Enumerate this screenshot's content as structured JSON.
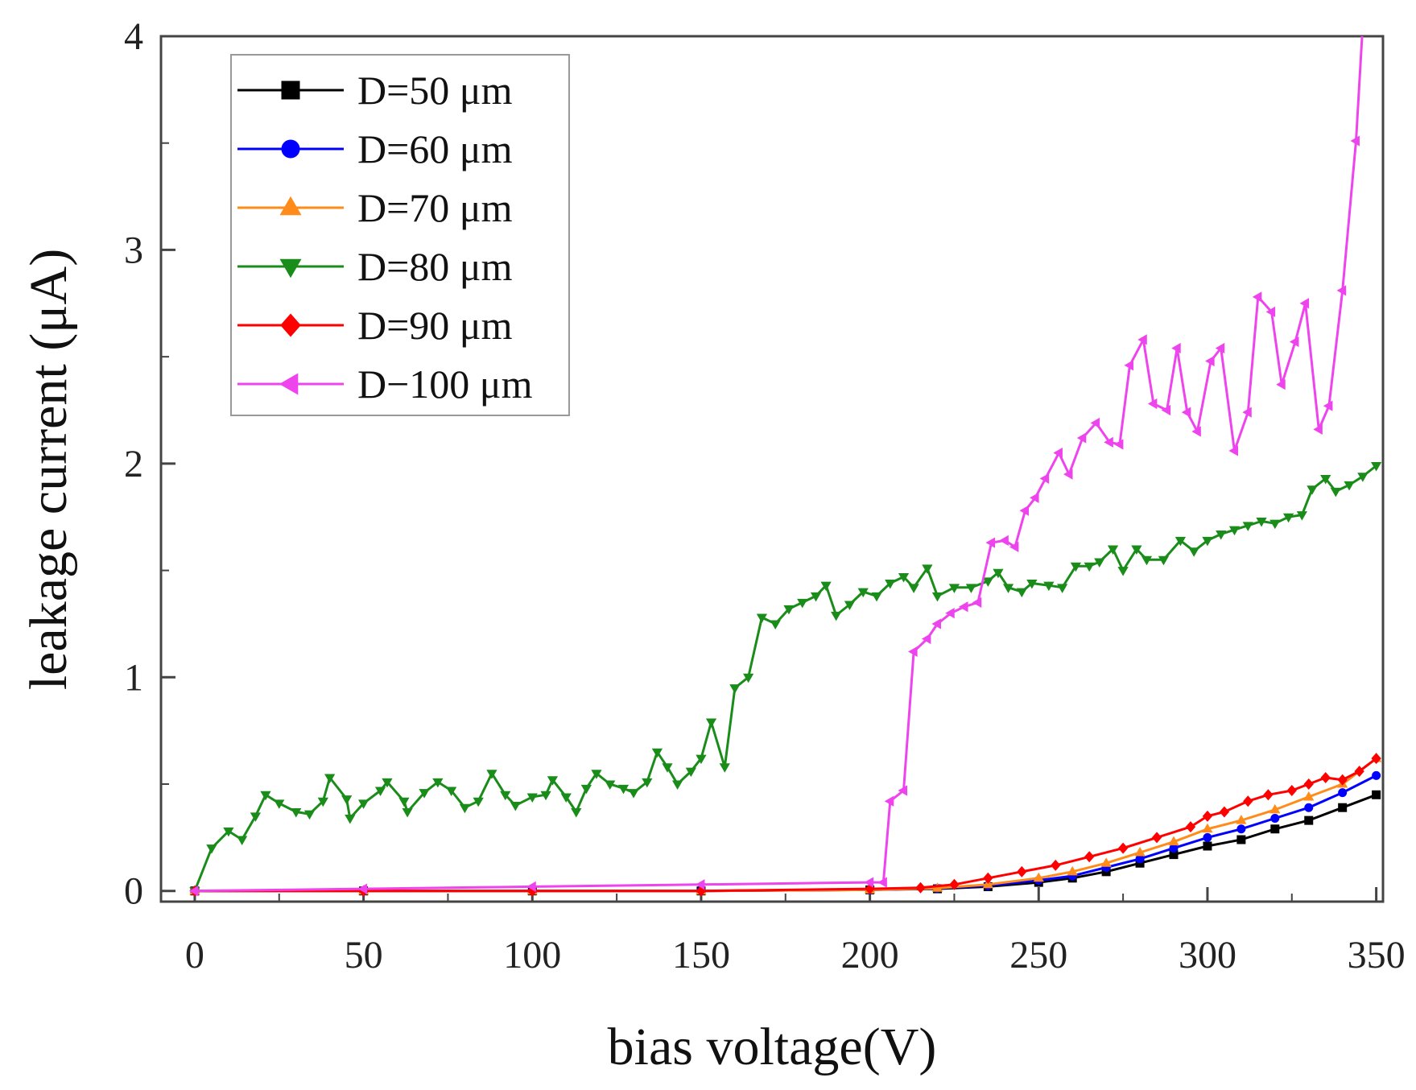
{
  "chart_data": {
    "type": "line",
    "title": "",
    "xlabel": "bias voltage(V)",
    "ylabel": "leakage current (μA)",
    "xlim": [
      -10,
      352
    ],
    "ylim": [
      -0.05,
      4.0
    ],
    "xticks": [
      0,
      50,
      100,
      150,
      200,
      250,
      300,
      350
    ],
    "yticks": [
      0,
      1,
      2,
      3,
      4
    ],
    "grid": false,
    "legend_position": "top-left",
    "series": [
      {
        "name": "D=50 μm",
        "color": "#000000",
        "marker": "square",
        "points": [
          [
            0,
            0
          ],
          [
            50,
            0
          ],
          [
            100,
            0
          ],
          [
            150,
            0
          ],
          [
            200,
            0.005
          ],
          [
            220,
            0.01
          ],
          [
            235,
            0.02
          ],
          [
            250,
            0.04
          ],
          [
            260,
            0.06
          ],
          [
            270,
            0.09
          ],
          [
            280,
            0.13
          ],
          [
            290,
            0.17
          ],
          [
            300,
            0.21
          ],
          [
            310,
            0.24
          ],
          [
            320,
            0.29
          ],
          [
            330,
            0.33
          ],
          [
            340,
            0.39
          ],
          [
            350,
            0.45
          ]
        ]
      },
      {
        "name": "D=60 μm",
        "color": "#0000ff",
        "marker": "circle",
        "points": [
          [
            0,
            0
          ],
          [
            50,
            0
          ],
          [
            100,
            0
          ],
          [
            150,
            0
          ],
          [
            200,
            0.005
          ],
          [
            220,
            0.012
          ],
          [
            235,
            0.025
          ],
          [
            250,
            0.05
          ],
          [
            260,
            0.07
          ],
          [
            270,
            0.11
          ],
          [
            280,
            0.15
          ],
          [
            290,
            0.2
          ],
          [
            300,
            0.25
          ],
          [
            310,
            0.29
          ],
          [
            320,
            0.34
          ],
          [
            330,
            0.39
          ],
          [
            340,
            0.46
          ],
          [
            350,
            0.54
          ]
        ]
      },
      {
        "name": "D=70 μm",
        "color": "#ff8c1a",
        "marker": "triangle-up",
        "points": [
          [
            0,
            0
          ],
          [
            50,
            0
          ],
          [
            100,
            0
          ],
          [
            150,
            0
          ],
          [
            200,
            0.005
          ],
          [
            220,
            0.013
          ],
          [
            235,
            0.03
          ],
          [
            250,
            0.06
          ],
          [
            260,
            0.09
          ],
          [
            270,
            0.13
          ],
          [
            280,
            0.18
          ],
          [
            290,
            0.23
          ],
          [
            300,
            0.29
          ],
          [
            310,
            0.33
          ],
          [
            320,
            0.38
          ],
          [
            330,
            0.44
          ],
          [
            340,
            0.5
          ],
          [
            350,
            0.62
          ]
        ]
      },
      {
        "name": "D=80 μm",
        "color": "#1a8c1a",
        "marker": "triangle-down",
        "points": [
          [
            0,
            0
          ],
          [
            5,
            0.2
          ],
          [
            10,
            0.28
          ],
          [
            14,
            0.24
          ],
          [
            18,
            0.35
          ],
          [
            21,
            0.45
          ],
          [
            25,
            0.41
          ],
          [
            30,
            0.37
          ],
          [
            34,
            0.36
          ],
          [
            38,
            0.42
          ],
          [
            40,
            0.53
          ],
          [
            45,
            0.43
          ],
          [
            46,
            0.34
          ],
          [
            50,
            0.41
          ],
          [
            55,
            0.47
          ],
          [
            57,
            0.51
          ],
          [
            62,
            0.42
          ],
          [
            63,
            0.37
          ],
          [
            68,
            0.46
          ],
          [
            72,
            0.51
          ],
          [
            76,
            0.47
          ],
          [
            80,
            0.39
          ],
          [
            84,
            0.42
          ],
          [
            88,
            0.55
          ],
          [
            92,
            0.45
          ],
          [
            95,
            0.4
          ],
          [
            100,
            0.44
          ],
          [
            104,
            0.45
          ],
          [
            106,
            0.52
          ],
          [
            110,
            0.44
          ],
          [
            113,
            0.37
          ],
          [
            116,
            0.48
          ],
          [
            119,
            0.55
          ],
          [
            123,
            0.5
          ],
          [
            127,
            0.48
          ],
          [
            130,
            0.46
          ],
          [
            134,
            0.51
          ],
          [
            137,
            0.65
          ],
          [
            140,
            0.58
          ],
          [
            143,
            0.5
          ],
          [
            147,
            0.56
          ],
          [
            150,
            0.62
          ],
          [
            153,
            0.79
          ],
          [
            157,
            0.58
          ],
          [
            160,
            0.95
          ],
          [
            164,
            1.0
          ],
          [
            168,
            1.28
          ],
          [
            172,
            1.25
          ],
          [
            176,
            1.32
          ],
          [
            180,
            1.35
          ],
          [
            184,
            1.38
          ],
          [
            187,
            1.43
          ],
          [
            190,
            1.29
          ],
          [
            194,
            1.34
          ],
          [
            198,
            1.4
          ],
          [
            202,
            1.38
          ],
          [
            206,
            1.44
          ],
          [
            210,
            1.47
          ],
          [
            213,
            1.42
          ],
          [
            217,
            1.51
          ],
          [
            220,
            1.38
          ],
          [
            225,
            1.42
          ],
          [
            230,
            1.42
          ],
          [
            235,
            1.45
          ],
          [
            238,
            1.49
          ],
          [
            241,
            1.42
          ],
          [
            245,
            1.4
          ],
          [
            248,
            1.44
          ],
          [
            253,
            1.43
          ],
          [
            257,
            1.42
          ],
          [
            261,
            1.52
          ],
          [
            265,
            1.52
          ],
          [
            268,
            1.54
          ],
          [
            272,
            1.6
          ],
          [
            275,
            1.5
          ],
          [
            279,
            1.6
          ],
          [
            282,
            1.55
          ],
          [
            287,
            1.55
          ],
          [
            292,
            1.64
          ],
          [
            296,
            1.59
          ],
          [
            300,
            1.64
          ],
          [
            304,
            1.67
          ],
          [
            308,
            1.69
          ],
          [
            312,
            1.71
          ],
          [
            316,
            1.73
          ],
          [
            320,
            1.72
          ],
          [
            324,
            1.75
          ],
          [
            328,
            1.76
          ],
          [
            331,
            1.88
          ],
          [
            335,
            1.93
          ],
          [
            338,
            1.87
          ],
          [
            342,
            1.9
          ],
          [
            346,
            1.94
          ],
          [
            350,
            1.99
          ]
        ]
      },
      {
        "name": "D=90 μm",
        "color": "#ff0000",
        "marker": "diamond",
        "points": [
          [
            0,
            0
          ],
          [
            50,
            0
          ],
          [
            100,
            0
          ],
          [
            150,
            0
          ],
          [
            200,
            0.01
          ],
          [
            215,
            0.015
          ],
          [
            225,
            0.03
          ],
          [
            235,
            0.06
          ],
          [
            245,
            0.09
          ],
          [
            255,
            0.12
          ],
          [
            265,
            0.16
          ],
          [
            275,
            0.2
          ],
          [
            285,
            0.25
          ],
          [
            295,
            0.3
          ],
          [
            300,
            0.35
          ],
          [
            305,
            0.37
          ],
          [
            312,
            0.42
          ],
          [
            318,
            0.45
          ],
          [
            325,
            0.47
          ],
          [
            330,
            0.5
          ],
          [
            335,
            0.53
          ],
          [
            340,
            0.52
          ],
          [
            345,
            0.56
          ],
          [
            350,
            0.62
          ]
        ]
      },
      {
        "name": "D−100 μm",
        "color": "#ee44ee",
        "marker": "triangle-left",
        "points": [
          [
            0,
            0
          ],
          [
            50,
            0.01
          ],
          [
            100,
            0.02
          ],
          [
            150,
            0.03
          ],
          [
            200,
            0.04
          ],
          [
            204,
            0.04
          ],
          [
            206,
            0.42
          ],
          [
            210,
            0.47
          ],
          [
            213,
            1.12
          ],
          [
            217,
            1.18
          ],
          [
            220,
            1.25
          ],
          [
            224,
            1.3
          ],
          [
            228,
            1.33
          ],
          [
            232,
            1.35
          ],
          [
            236,
            1.63
          ],
          [
            240,
            1.64
          ],
          [
            243,
            1.61
          ],
          [
            246,
            1.78
          ],
          [
            249,
            1.84
          ],
          [
            252,
            1.93
          ],
          [
            256,
            2.05
          ],
          [
            259,
            1.95
          ],
          [
            263,
            2.12
          ],
          [
            267,
            2.19
          ],
          [
            271,
            2.1
          ],
          [
            274,
            2.09
          ],
          [
            277,
            2.46
          ],
          [
            281,
            2.58
          ],
          [
            284,
            2.28
          ],
          [
            288,
            2.25
          ],
          [
            291,
            2.54
          ],
          [
            294,
            2.24
          ],
          [
            297,
            2.15
          ],
          [
            301,
            2.48
          ],
          [
            304,
            2.54
          ],
          [
            308,
            2.06
          ],
          [
            312,
            2.24
          ],
          [
            315,
            2.78
          ],
          [
            319,
            2.71
          ],
          [
            322,
            2.37
          ],
          [
            326,
            2.57
          ],
          [
            329,
            2.75
          ],
          [
            333,
            2.16
          ],
          [
            336,
            2.27
          ],
          [
            340,
            2.81
          ],
          [
            344,
            3.51
          ],
          [
            346,
            4.05
          ]
        ]
      }
    ]
  }
}
